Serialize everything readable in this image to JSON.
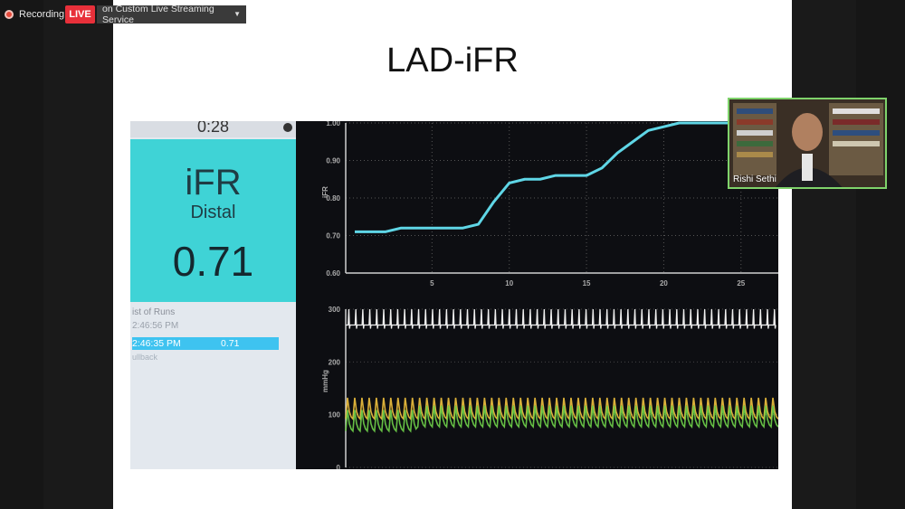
{
  "recording": {
    "label": "Recording",
    "live_badge": "LIVE",
    "service": "on Custom Live Streaming Service"
  },
  "slide": {
    "title": "LAD-iFR"
  },
  "monitor": {
    "timer": "0:28",
    "ifr_label": "iFR",
    "ifr_location": "Distal",
    "ifr_value": "0.71",
    "runs_title": "ist of Runs",
    "runs": [
      {
        "time": "2:46:56 PM",
        "value": ""
      },
      {
        "time": "2:46:35 PM",
        "value": "0.71"
      },
      {
        "time": "ullback",
        "value": ""
      }
    ]
  },
  "chart_data": [
    {
      "type": "line",
      "title": "",
      "ylabel": "iFR",
      "xlabel": "",
      "ylim": [
        0.6,
        1.0
      ],
      "xlim": [
        0,
        28
      ],
      "x_ticks": [
        "5",
        "10",
        "15",
        "20",
        "25"
      ],
      "y_ticks": [
        "0.60",
        "0.70",
        "0.80",
        "0.90",
        "1.00"
      ],
      "series": [
        {
          "color": "#5fd6e6",
          "x": [
            0,
            1,
            2,
            3,
            4,
            5,
            6,
            7,
            8,
            9,
            10,
            11,
            12,
            13,
            14,
            15,
            16,
            17,
            18,
            19,
            20,
            21,
            22,
            23,
            24,
            25,
            26,
            27,
            28
          ],
          "y": [
            0.71,
            0.71,
            0.71,
            0.72,
            0.72,
            0.72,
            0.72,
            0.72,
            0.73,
            0.79,
            0.84,
            0.85,
            0.85,
            0.86,
            0.86,
            0.86,
            0.88,
            0.92,
            0.95,
            0.98,
            0.99,
            1.0,
            1.0,
            1.0,
            1.0,
            1.0,
            1.0,
            1.0,
            1.0
          ]
        }
      ]
    },
    {
      "type": "line",
      "title": "",
      "ylabel": "mmHg",
      "ylim": [
        0,
        300
      ],
      "y_ticks": [
        "0",
        "100",
        "200",
        "300"
      ],
      "series": [
        {
          "color": "#f2c23e",
          "description_free": true,
          "baseline": 110,
          "amplitude": 25
        },
        {
          "color": "#6fd24a",
          "description_free": true,
          "baseline": 95,
          "amplitude": 25
        }
      ]
    }
  ],
  "participant": {
    "name": "Rishi Sethi"
  },
  "colors": {
    "accent_live": "#e8303a",
    "ifr_panel": "#3fd3d6",
    "cam_border": "#7fd36b"
  }
}
